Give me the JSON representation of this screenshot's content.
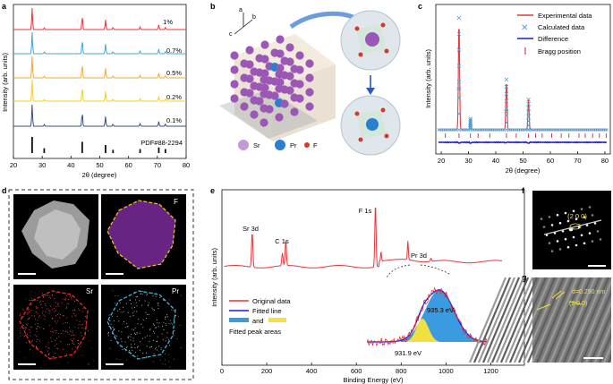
{
  "panel_labels": [
    "a",
    "b",
    "c",
    "d",
    "e",
    "f",
    "g"
  ],
  "colors": {
    "red": "#e8363a",
    "blue": "#4aa3d9",
    "orange": "#f2a93b",
    "gold": "#f2cf2e",
    "navy": "#3a4f80",
    "black": "#111111",
    "purple": "#9b57b5",
    "sr_sphere": "#c39ad6",
    "pr_sphere": "#2a7fd0",
    "f_sphere": "#d23a2a",
    "diff_blue": "#1a1ae0",
    "bragg": "#e0307a",
    "fit_fill": "#3a9be0",
    "fit_yellow": "#f2e040"
  },
  "panel_a": {
    "ylabel": "Intensity (arb. units)",
    "xlabel": "2θ (degree)",
    "xticks": [
      "20",
      "30",
      "40",
      "50",
      "60",
      "70",
      "80"
    ],
    "traces": [
      {
        "label": "1%",
        "color": "#e8363a"
      },
      {
        "label": "0.7%",
        "color": "#4aa3d9"
      },
      {
        "label": "0.5%",
        "color": "#f2a93b"
      },
      {
        "label": "0.2%",
        "color": "#f2cf2e"
      },
      {
        "label": "0.1%",
        "color": "#3a4f80"
      }
    ],
    "reference": "PDF#88-2294"
  },
  "panel_b": {
    "axes": [
      "a",
      "b",
      "c"
    ],
    "legend": [
      {
        "label": "Sr"
      },
      {
        "label": "Pr"
      },
      {
        "label": "F"
      }
    ]
  },
  "panel_c": {
    "ylabel": "Intensity (arb. units)",
    "xlabel": "2θ (degree)",
    "xticks": [
      "20",
      "30",
      "40",
      "50",
      "60",
      "70",
      "80"
    ],
    "legend": [
      {
        "label": "Experimental data"
      },
      {
        "label": "Calculated data"
      },
      {
        "label": "Difference"
      },
      {
        "label": "Bragg position"
      }
    ]
  },
  "panel_d": {
    "maps": [
      {
        "label": "F"
      },
      {
        "label": "Sr"
      },
      {
        "label": "Pr"
      }
    ]
  },
  "panel_e": {
    "ylabel": "Intensity (arb. units)",
    "xlabel": "Binding Energy (eV)",
    "xticks": [
      "0",
      "200",
      "400",
      "600",
      "800",
      "1000",
      "1200"
    ],
    "peaks": [
      "Sr 3d",
      "C 1s",
      "F 1s",
      "Pr 3d"
    ],
    "legend": {
      "original": "Original data",
      "fitted": "Fitted line",
      "and": "and",
      "areas": "Fitted peak areas"
    },
    "inset_peaks": [
      "935.3 eV",
      "931.9 eV"
    ]
  },
  "panel_f": {
    "annotation": "(2 0 0)"
  },
  "panel_g": {
    "d_spacing": "d=0.290 nm",
    "plane": "(2 0 0)"
  },
  "chart_data": [
    {
      "type": "line",
      "title": "a",
      "xlabel": "2θ (degree)",
      "ylabel": "Intensity (arb. units)",
      "xlim": [
        20,
        80
      ],
      "peak_positions": [
        26.5,
        30.7,
        43.9,
        52.0,
        54.6,
        64.0,
        70.5,
        72.8
      ],
      "series": [
        {
          "name": "1%",
          "peak_heights": [
            1.0,
            0.08,
            0.65,
            0.45,
            0.1,
            0.12,
            0.22,
            0.1
          ]
        },
        {
          "name": "0.7%",
          "peak_heights": [
            1.0,
            0.08,
            0.65,
            0.45,
            0.1,
            0.12,
            0.22,
            0.1
          ]
        },
        {
          "name": "0.5%",
          "peak_heights": [
            1.0,
            0.08,
            0.65,
            0.45,
            0.1,
            0.12,
            0.22,
            0.1
          ]
        },
        {
          "name": "0.2%",
          "peak_heights": [
            1.0,
            0.08,
            0.65,
            0.45,
            0.1,
            0.12,
            0.22,
            0.1
          ]
        },
        {
          "name": "0.1%",
          "peak_heights": [
            1.0,
            0.08,
            0.65,
            0.45,
            0.1,
            0.12,
            0.22,
            0.1
          ]
        },
        {
          "name": "PDF#88-2294",
          "peak_heights": [
            1.0,
            0.3,
            0.7,
            0.5,
            0.2,
            0.25,
            0.35,
            0.25
          ]
        }
      ]
    },
    {
      "type": "line",
      "title": "c",
      "xlabel": "2θ (degree)",
      "ylabel": "Intensity (arb. units)",
      "xlim": [
        18,
        82
      ],
      "peak_positions": [
        26.5,
        30.7,
        43.9,
        52.0
      ],
      "series": [
        {
          "name": "Experimental data",
          "peak_heights": [
            1.0,
            0.1,
            0.45,
            0.27
          ]
        },
        {
          "name": "Calculated data",
          "peak_heights": [
            1.0,
            0.1,
            0.45,
            0.27
          ]
        }
      ],
      "bragg_positions": [
        21.5,
        26.5,
        30.7,
        33.5,
        37.8,
        43.9,
        47.5,
        52.0,
        54.6,
        57.0,
        60.5,
        64.0,
        66.8,
        70.5,
        72.8,
        75.5,
        78.0,
        80.5
      ]
    },
    {
      "type": "line",
      "title": "e",
      "xlabel": "Binding Energy (eV)",
      "ylabel": "Intensity (arb. units)",
      "xlim": [
        0,
        1350
      ],
      "peaks": [
        {
          "label": "Sr 3d",
          "x": 135,
          "rel_height": 0.55
        },
        {
          "label": "C 1s",
          "x": 285,
          "rel_height": 0.4
        },
        {
          "label": "F 1s",
          "x": 685,
          "rel_height": 1.0
        },
        {
          "label": "Pr 3d",
          "x": 933,
          "rel_height": 0.05
        }
      ]
    }
  ]
}
